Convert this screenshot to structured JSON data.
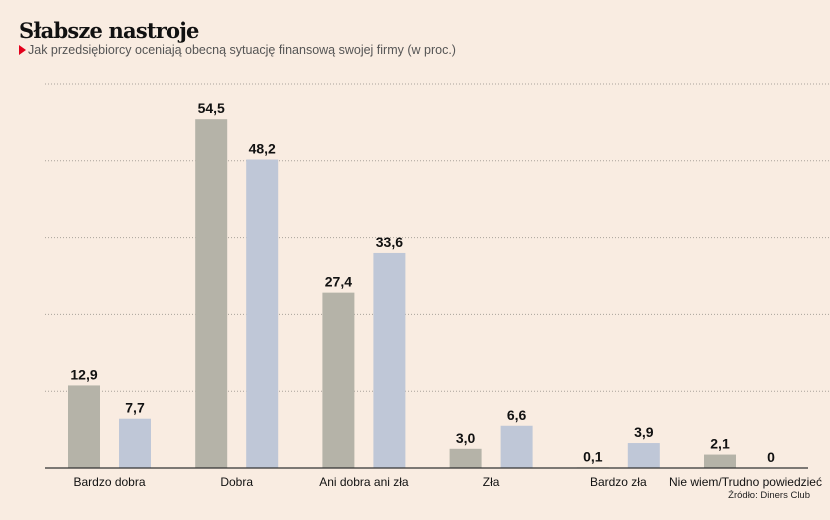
{
  "chart_data": {
    "type": "bar",
    "title": "Słabsze nastroje",
    "subtitle": "Jak przedsiębiorcy oceniają obecną sytuację finansową swojej firmy (w proc.)",
    "source": "Źródło: Diners Club",
    "categories": [
      "Bardzo dobra",
      "Dobra",
      "Ani dobra ani zła",
      "Zła",
      "Bardzo zła",
      "Nie wiem/Trudno powiedzieć"
    ],
    "series": [
      {
        "values": [
          12.9,
          54.5,
          27.4,
          3.0,
          0.1,
          2.1
        ],
        "labels": [
          "12,9",
          "54,5",
          "27,4",
          "3,0",
          "0,1",
          "2,1"
        ],
        "color": "#b5b3a8"
      },
      {
        "values": [
          7.7,
          48.2,
          33.6,
          6.6,
          3.9,
          0
        ],
        "labels": [
          "7,7",
          "48,2",
          "33,6",
          "6,6",
          "3,9",
          "0"
        ],
        "color": "#bfc7d7"
      }
    ],
    "ylim": [
      0,
      60
    ],
    "grid_step": 12,
    "grid": true,
    "y_tick_labels_shown": false
  }
}
